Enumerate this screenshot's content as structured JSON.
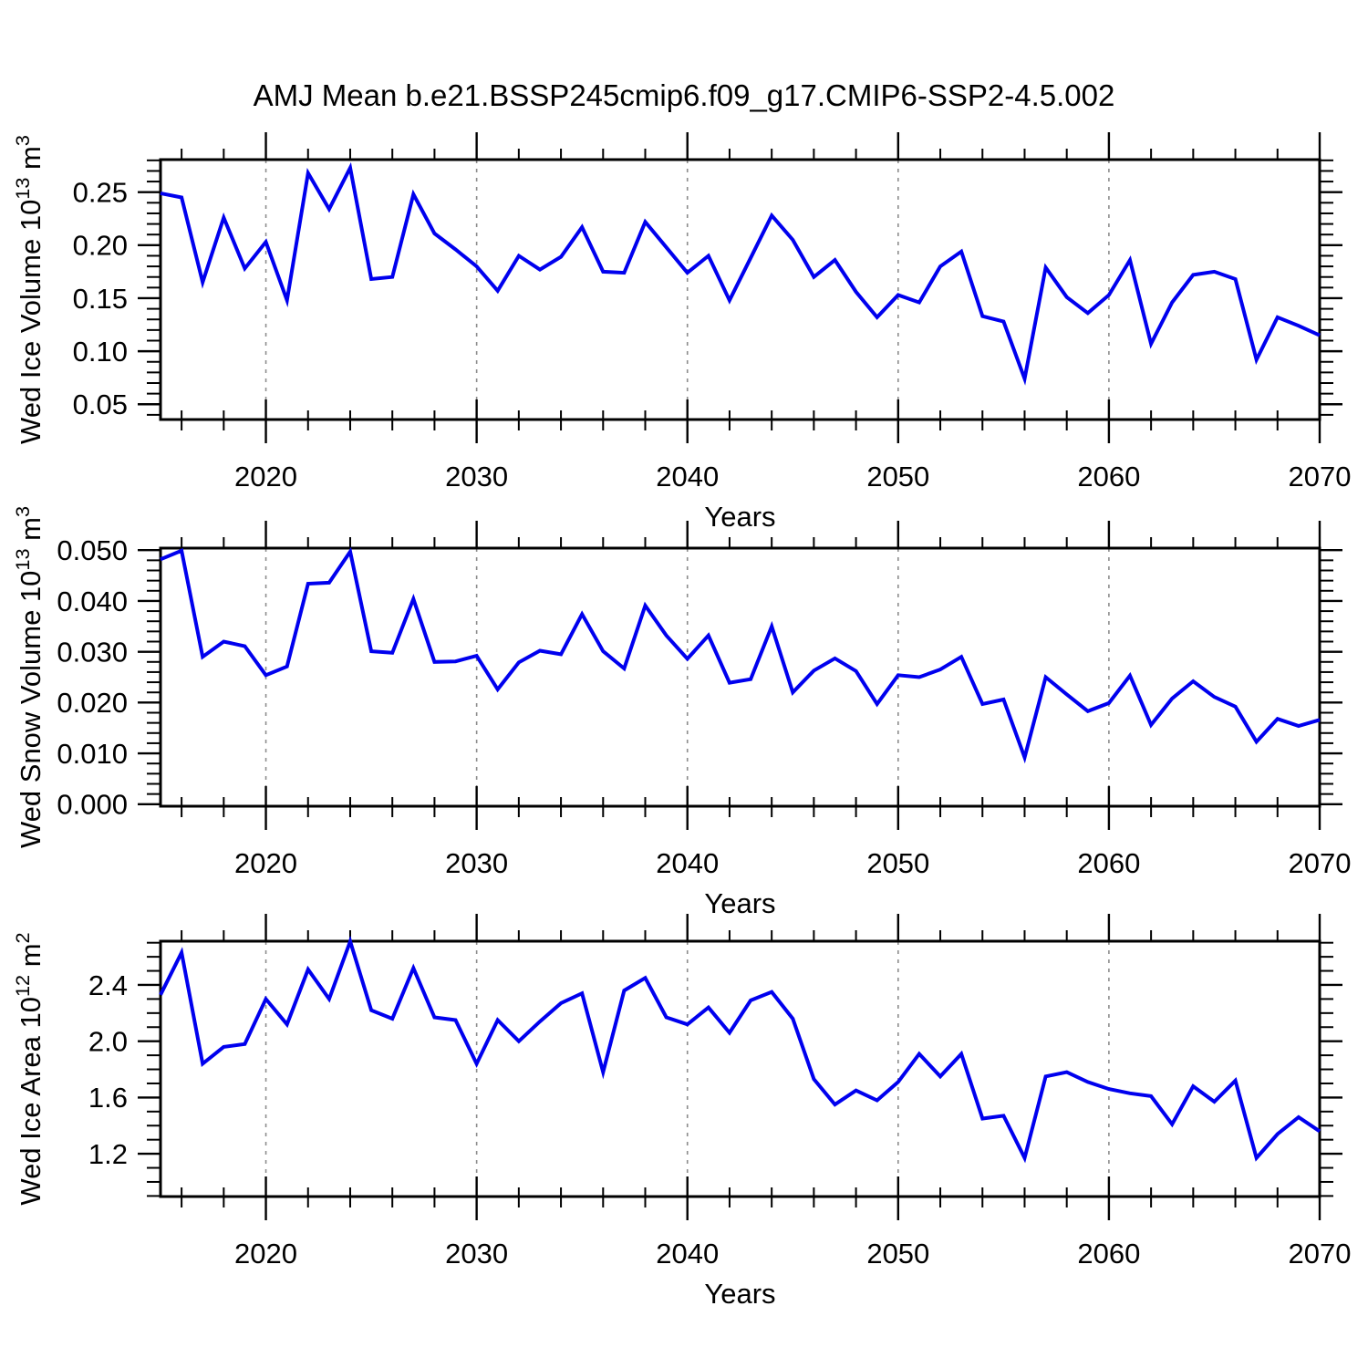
{
  "title": "AMJ Mean b.e21.BSSP245cmip6.f09_g17.CMIP6-SSP2-4.5.002",
  "style": {
    "line_color": "#0000ee",
    "axis_color": "#000000",
    "grid_color": "#8c8c8c",
    "text_color": "#000000",
    "background": "#ffffff"
  },
  "years": [
    2015,
    2016,
    2017,
    2018,
    2019,
    2020,
    2021,
    2022,
    2023,
    2024,
    2025,
    2026,
    2027,
    2028,
    2029,
    2030,
    2031,
    2032,
    2033,
    2034,
    2035,
    2036,
    2037,
    2038,
    2039,
    2040,
    2041,
    2042,
    2043,
    2044,
    2045,
    2046,
    2047,
    2048,
    2049,
    2050,
    2051,
    2052,
    2053,
    2054,
    2055,
    2056,
    2057,
    2058,
    2059,
    2060,
    2061,
    2062,
    2063,
    2064,
    2065,
    2066,
    2067,
    2068,
    2069,
    2070
  ],
  "chart_data": [
    {
      "type": "line",
      "series_name": "Wed Ice Volume",
      "ylabel": "Wed Ice Volume 10^13 m^3",
      "ylabel_parts": [
        [
          "Wed Ice Volume 10",
          0
        ],
        [
          "13",
          1
        ],
        [
          " m",
          0
        ],
        [
          "3",
          1
        ]
      ],
      "xlabel": "Years",
      "xlim": [
        2015,
        2070
      ],
      "ylim": [
        0.0356,
        0.2807
      ],
      "yticks": [
        0.05,
        0.1,
        0.15,
        0.2,
        0.25
      ],
      "ytick_decimals": 2,
      "yminor_step": 0.01,
      "xticks": [
        2020,
        2030,
        2040,
        2050,
        2060,
        2070
      ],
      "xminor_step": 2,
      "gridlines_x": [
        2020,
        2030,
        2040,
        2050,
        2060
      ],
      "values": [
        0.249,
        0.245,
        0.165,
        0.226,
        0.178,
        0.203,
        0.148,
        0.268,
        0.234,
        0.273,
        0.168,
        0.17,
        0.248,
        0.211,
        0.196,
        0.18,
        0.157,
        0.19,
        0.177,
        0.189,
        0.217,
        0.175,
        0.174,
        0.222,
        0.198,
        0.174,
        0.19,
        0.148,
        0.188,
        0.228,
        0.205,
        0.17,
        0.186,
        0.156,
        0.132,
        0.153,
        0.146,
        0.18,
        0.194,
        0.133,
        0.128,
        0.074,
        0.179,
        0.151,
        0.136,
        0.153,
        0.186,
        0.107,
        0.146,
        0.172,
        0.175,
        0.168,
        0.092,
        0.132,
        0.124,
        0.115
      ]
    },
    {
      "type": "line",
      "series_name": "Wed Snow Volume",
      "ylabel": "Wed Snow Volume 10^13 m^3",
      "ylabel_parts": [
        [
          "Wed Snow Volume 10",
          0
        ],
        [
          "13",
          1
        ],
        [
          " m",
          0
        ],
        [
          "3",
          1
        ]
      ],
      "xlabel": "Years",
      "xlim": [
        2015,
        2070
      ],
      "ylim": [
        -0.0004,
        0.0504
      ],
      "yticks": [
        0.0,
        0.01,
        0.02,
        0.03,
        0.04,
        0.05
      ],
      "ytick_decimals": 3,
      "yminor_step": 0.002,
      "xticks": [
        2020,
        2030,
        2040,
        2050,
        2060,
        2070
      ],
      "xminor_step": 2,
      "gridlines_x": [
        2020,
        2030,
        2040,
        2050,
        2060
      ],
      "values": [
        0.0482,
        0.0499,
        0.029,
        0.032,
        0.0311,
        0.0254,
        0.0271,
        0.0434,
        0.0436,
        0.0497,
        0.0301,
        0.0298,
        0.0404,
        0.028,
        0.0281,
        0.0292,
        0.0226,
        0.0279,
        0.0302,
        0.0295,
        0.0374,
        0.0301,
        0.0267,
        0.0391,
        0.0332,
        0.0286,
        0.0332,
        0.0239,
        0.0246,
        0.035,
        0.022,
        0.0263,
        0.0287,
        0.0262,
        0.0197,
        0.0254,
        0.025,
        0.0265,
        0.029,
        0.0197,
        0.0206,
        0.0092,
        0.025,
        0.0216,
        0.0183,
        0.0199,
        0.0253,
        0.0156,
        0.0208,
        0.0242,
        0.0211,
        0.0192,
        0.0123,
        0.0168,
        0.0154,
        0.0166
      ]
    },
    {
      "type": "line",
      "series_name": "Wed Ice Area",
      "ylabel": "Wed Ice Area 10^12 m^2",
      "ylabel_parts": [
        [
          "Wed Ice Area 10",
          0
        ],
        [
          "12",
          1
        ],
        [
          " m",
          0
        ],
        [
          "2",
          1
        ]
      ],
      "xlabel": "Years",
      "xlim": [
        2015,
        2070
      ],
      "ylim": [
        0.896,
        2.711
      ],
      "yticks": [
        1.2,
        1.6,
        2.0,
        2.4
      ],
      "ytick_decimals": 1,
      "yminor_step": 0.1,
      "xticks": [
        2020,
        2030,
        2040,
        2050,
        2060,
        2070
      ],
      "xminor_step": 2,
      "gridlines_x": [
        2020,
        2030,
        2040,
        2050,
        2060
      ],
      "values": [
        2.33,
        2.63,
        1.84,
        1.96,
        1.98,
        2.3,
        2.12,
        2.51,
        2.3,
        2.71,
        2.22,
        2.16,
        2.52,
        2.17,
        2.15,
        1.84,
        2.15,
        2.0,
        2.14,
        2.27,
        2.34,
        1.78,
        2.36,
        2.45,
        2.17,
        2.12,
        2.24,
        2.06,
        2.29,
        2.35,
        2.16,
        1.73,
        1.55,
        1.65,
        1.58,
        1.71,
        1.91,
        1.75,
        1.91,
        1.45,
        1.47,
        1.17,
        1.75,
        1.78,
        1.71,
        1.66,
        1.63,
        1.61,
        1.41,
        1.68,
        1.57,
        1.72,
        1.17,
        1.34,
        1.46,
        1.36
      ]
    }
  ]
}
